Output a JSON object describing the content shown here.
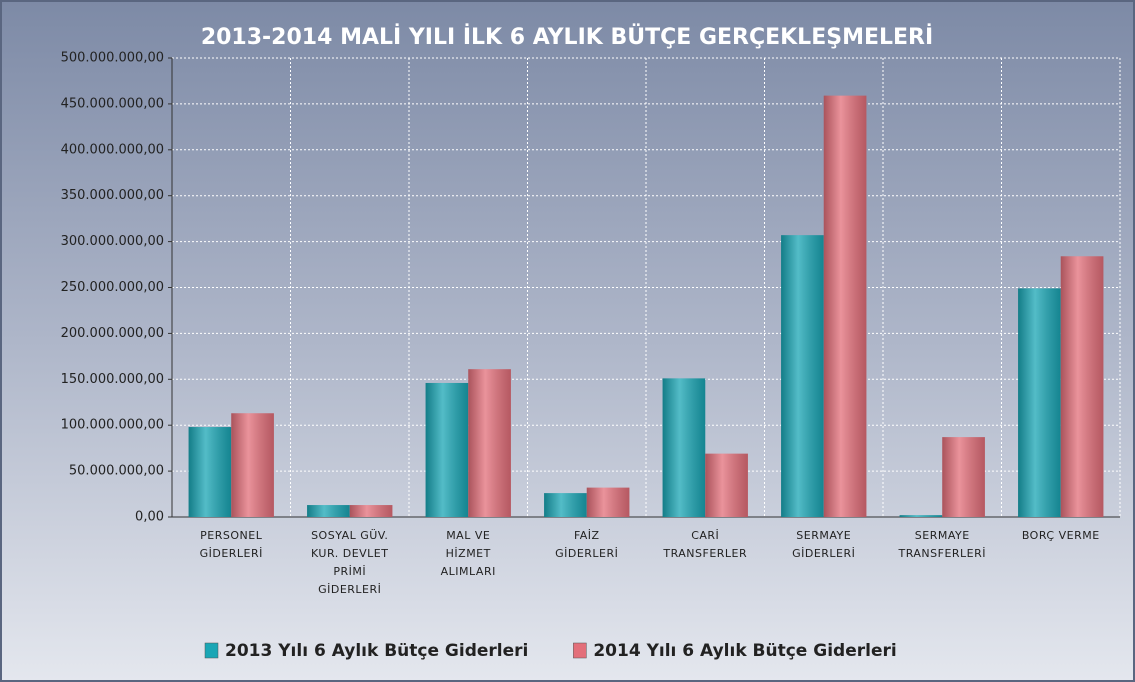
{
  "chart_data": {
    "type": "bar",
    "title": "2013-2014 MALİ YILI İLK 6 AYLIK BÜTÇE GERÇEKLEŞMELERİ",
    "categories": [
      "PERSONEL GİDERLERİ",
      "SOSYAL GÜV. KUR. DEVLET PRİMİ GİDERLERİ",
      "MAL VE HİZMET ALIMLARI",
      "FAİZ GİDERLERİ",
      "CARİ TRANSFERLER",
      "SERMAYE GİDERLERİ",
      "SERMAYE TRANSFERLERİ",
      "BORÇ VERME"
    ],
    "series": [
      {
        "name": "2013 Yılı 6 Aylık Bütçe Giderleri",
        "color": "#1aa6b5",
        "values": [
          98000000,
          13000000,
          146000000,
          26000000,
          151000000,
          307000000,
          2000000,
          249000000
        ]
      },
      {
        "name": "2014 Yılı 6 Aylık Bütçe Giderleri",
        "color": "#e36f7a",
        "values": [
          113000000,
          13000000,
          161000000,
          32000000,
          69000000,
          459000000,
          87000000,
          284000000
        ]
      }
    ],
    "ylim": [
      0,
      500000000
    ],
    "yticks": [
      {
        "value": 0,
        "label": "0,00"
      },
      {
        "value": 50000000,
        "label": "50.000.000,00"
      },
      {
        "value": 100000000,
        "label": "100.000.000,00"
      },
      {
        "value": 150000000,
        "label": "150.000.000,00"
      },
      {
        "value": 200000000,
        "label": "200.000.000,00"
      },
      {
        "value": 250000000,
        "label": "250.000.000,00"
      },
      {
        "value": 300000000,
        "label": "300.000.000,00"
      },
      {
        "value": 350000000,
        "label": "350.000.000,00"
      },
      {
        "value": 400000000,
        "label": "400.000.000,00"
      },
      {
        "value": 450000000,
        "label": "450.000.000,00"
      },
      {
        "value": 500000000,
        "label": "500.000.000,00"
      }
    ],
    "grid": true,
    "legend": "bottom"
  }
}
